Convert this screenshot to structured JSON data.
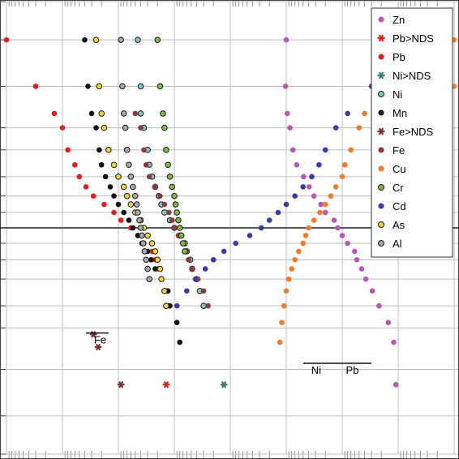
{
  "chart_data": {
    "type": "scatter",
    "orientation": "mirrored",
    "title": "",
    "xlabel": "",
    "ylabel": "",
    "xscale": "log",
    "xlim": [
      0.01,
      1000000
    ],
    "ylim": [
      0.01,
      99.99
    ],
    "grid": true,
    "legend": {
      "placement": "top-right"
    },
    "reference_line_y": 50,
    "annotations": [
      {
        "text": "Fe",
        "y": 95.8,
        "x_range": [
          15000,
          38000
        ]
      },
      {
        "text": "Pb",
        "y": 98.7,
        "x_range": [
          0.3,
          1.2
        ]
      },
      {
        "text": "Ni",
        "y": 98.7,
        "x_range": [
          1.2,
          5
        ]
      }
    ],
    "series": [
      {
        "name": "Zn",
        "color": "#b659b3",
        "marker": "circle",
        "points": [
          [
            10,
            0.1
          ],
          [
            10.3,
            1
          ],
          [
            9.6,
            3
          ],
          [
            8.6,
            5
          ],
          [
            7.6,
            10
          ],
          [
            6.5,
            15
          ],
          [
            4.9,
            20
          ],
          [
            3.9,
            25
          ],
          [
            3.2,
            30
          ],
          [
            2.4,
            35
          ],
          [
            2.0,
            40
          ],
          [
            1.4,
            45
          ],
          [
            1.2,
            50
          ],
          [
            1.0,
            55
          ],
          [
            0.8,
            60
          ],
          [
            0.6,
            65
          ],
          [
            0.55,
            70
          ],
          [
            0.45,
            75
          ],
          [
            0.38,
            80
          ],
          [
            0.29,
            85
          ],
          [
            0.22,
            90
          ],
          [
            0.15,
            94
          ],
          [
            0.12,
            97
          ],
          [
            0.11,
            99.5
          ]
        ]
      },
      {
        "name": "Pb>NDS",
        "color": "#e0201f",
        "marker": "star",
        "points": [
          [
            1400,
            99.5
          ]
        ]
      },
      {
        "name": "Pb",
        "color": "#e0201f",
        "marker": "circle",
        "points": [
          [
            1000000,
            0.1
          ],
          [
            300000,
            1
          ],
          [
            140000,
            3
          ],
          [
            100000,
            5
          ],
          [
            80000,
            10
          ],
          [
            60000,
            15
          ],
          [
            50000,
            20
          ],
          [
            38000,
            25
          ],
          [
            28000,
            30
          ],
          [
            18000,
            35
          ],
          [
            12000,
            40
          ],
          [
            9000,
            45
          ],
          [
            6000,
            50
          ],
          [
            4500,
            55
          ],
          [
            3500,
            60
          ],
          [
            2500,
            65
          ],
          [
            2200,
            70
          ],
          [
            2000,
            75
          ],
          [
            1700,
            80
          ],
          [
            1400,
            85
          ],
          [
            1250,
            90
          ]
        ]
      },
      {
        "name": "Ni>NDS",
        "color": "#3c7a7a",
        "marker": "star",
        "points": [
          [
            130,
            99.5
          ]
        ]
      },
      {
        "name": "Ni",
        "color": "#7fc7c2",
        "marker": "circle",
        "points": [
          [
            4500,
            0.1
          ],
          [
            4000,
            1
          ],
          [
            4000,
            3
          ],
          [
            3500,
            5
          ],
          [
            3000,
            10
          ],
          [
            2800,
            15
          ],
          [
            2500,
            20
          ],
          [
            2200,
            25
          ],
          [
            1900,
            30
          ],
          [
            1700,
            35
          ],
          [
            1500,
            40
          ],
          [
            1200,
            45
          ],
          [
            1000,
            50
          ],
          [
            800,
            55
          ],
          [
            650,
            60
          ],
          [
            600,
            65
          ],
          [
            520,
            70
          ],
          [
            480,
            75
          ],
          [
            400,
            80
          ],
          [
            350,
            85
          ],
          [
            300,
            90
          ]
        ]
      },
      {
        "name": "Mn",
        "color": "#111111",
        "marker": "circle",
        "points": [
          [
            40000,
            0.1
          ],
          [
            35000,
            1
          ],
          [
            30000,
            3
          ],
          [
            25000,
            5
          ],
          [
            22000,
            10
          ],
          [
            20000,
            15
          ],
          [
            17000,
            20
          ],
          [
            14000,
            25
          ],
          [
            12000,
            30
          ],
          [
            10000,
            35
          ],
          [
            8000,
            40
          ],
          [
            6500,
            45
          ],
          [
            5500,
            50
          ],
          [
            4500,
            55
          ],
          [
            3800,
            60
          ],
          [
            3000,
            65
          ],
          [
            2600,
            70
          ],
          [
            2200,
            75
          ],
          [
            1700,
            80
          ],
          [
            1300,
            85
          ],
          [
            1200,
            90
          ],
          [
            900,
            94
          ],
          [
            800,
            97
          ]
        ]
      },
      {
        "name": "Fe>NDS",
        "color": "#7a3333",
        "marker": "star",
        "points": [
          [
            28000,
            96
          ],
          [
            23000,
            97.5
          ],
          [
            9000,
            99.5
          ]
        ]
      },
      {
        "name": "Fe",
        "color": "#8b3b3b",
        "marker": "circle",
        "points": [
          [
            5000,
            3
          ],
          [
            4000,
            5
          ],
          [
            3500,
            10
          ],
          [
            3200,
            15
          ],
          [
            2800,
            20
          ],
          [
            2200,
            25
          ],
          [
            1800,
            30
          ],
          [
            1500,
            35
          ],
          [
            1250,
            40
          ],
          [
            1100,
            45
          ],
          [
            1000,
            50
          ],
          [
            850,
            55
          ],
          [
            700,
            60
          ],
          [
            600,
            65
          ],
          [
            560,
            70
          ],
          [
            480,
            75
          ],
          [
            380,
            80
          ],
          [
            300,
            85
          ],
          [
            250,
            90
          ]
        ]
      },
      {
        "name": "Cu",
        "color": "#f07b2c",
        "marker": "circle",
        "points": [
          [
            0.005,
            0.1
          ],
          [
            0.005,
            1
          ],
          [
            0.4,
            3
          ],
          [
            0.5,
            5
          ],
          [
            0.7,
            10
          ],
          [
            0.9,
            15
          ],
          [
            1.0,
            20
          ],
          [
            1.3,
            25
          ],
          [
            1.6,
            30
          ],
          [
            2.0,
            35
          ],
          [
            2.5,
            40
          ],
          [
            3.2,
            45
          ],
          [
            4.0,
            50
          ],
          [
            4.5,
            55
          ],
          [
            5.0,
            60
          ],
          [
            6.0,
            65
          ],
          [
            7.0,
            70
          ],
          [
            8.0,
            75
          ],
          [
            9.0,
            80
          ],
          [
            10,
            85
          ],
          [
            11,
            90
          ],
          [
            12,
            94
          ],
          [
            13,
            97
          ]
        ]
      },
      {
        "name": "Cr",
        "color": "#7fba43",
        "marker": "circle",
        "points": [
          [
            2000,
            0.1
          ],
          [
            1800,
            1
          ],
          [
            1600,
            3
          ],
          [
            1500,
            5
          ],
          [
            1400,
            10
          ],
          [
            1300,
            15
          ],
          [
            1200,
            20
          ],
          [
            1100,
            25
          ],
          [
            1000,
            30
          ],
          [
            950,
            35
          ],
          [
            900,
            40
          ],
          [
            850,
            45
          ],
          [
            800,
            50
          ],
          [
            750,
            55
          ],
          [
            700,
            60
          ],
          [
            650,
            65
          ]
        ]
      },
      {
        "name": "Cd",
        "color": "#3b3ca3",
        "marker": "circle",
        "points": [
          [
            0.03,
            0.1
          ],
          [
            0.3,
            1
          ],
          [
            0.8,
            3
          ],
          [
            1.3,
            5
          ],
          [
            2.0,
            10
          ],
          [
            2.6,
            15
          ],
          [
            3.5,
            20
          ],
          [
            5.0,
            25
          ],
          [
            7.0,
            30
          ],
          [
            10,
            35
          ],
          [
            14,
            40
          ],
          [
            20,
            45
          ],
          [
            28,
            50
          ],
          [
            45,
            55
          ],
          [
            80,
            60
          ],
          [
            130,
            65
          ],
          [
            200,
            70
          ],
          [
            280,
            75
          ],
          [
            420,
            80
          ],
          [
            600,
            85
          ],
          [
            900,
            90
          ]
        ]
      },
      {
        "name": "As",
        "color": "#f1d33b",
        "marker": "circle",
        "points": [
          [
            25000,
            0.1
          ],
          [
            22000,
            1
          ],
          [
            20000,
            3
          ],
          [
            18000,
            5
          ],
          [
            15000,
            10
          ],
          [
            12000,
            15
          ],
          [
            10000,
            20
          ],
          [
            8000,
            25
          ],
          [
            7000,
            30
          ],
          [
            6000,
            35
          ],
          [
            5000,
            40
          ],
          [
            4000,
            45
          ],
          [
            3500,
            50
          ],
          [
            3000,
            55
          ],
          [
            2500,
            60
          ],
          [
            2200,
            65
          ],
          [
            2000,
            70
          ],
          [
            1800,
            75
          ],
          [
            1700,
            80
          ],
          [
            1500,
            85
          ],
          [
            1400,
            90
          ]
        ]
      },
      {
        "name": "Al",
        "color": "#a7a7a7",
        "marker": "circle",
        "points": [
          [
            9000,
            0.1
          ],
          [
            8500,
            1
          ],
          [
            8000,
            3
          ],
          [
            7500,
            5
          ],
          [
            7000,
            10
          ],
          [
            6500,
            15
          ],
          [
            6000,
            20
          ],
          [
            5500,
            25
          ],
          [
            5000,
            30
          ],
          [
            4700,
            35
          ],
          [
            4500,
            40
          ],
          [
            4200,
            45
          ],
          [
            4000,
            50
          ],
          [
            3800,
            55
          ],
          [
            3600,
            60
          ],
          [
            3400,
            65
          ],
          [
            3200,
            70
          ],
          [
            3000,
            75
          ],
          [
            2800,
            80
          ]
        ]
      }
    ]
  }
}
